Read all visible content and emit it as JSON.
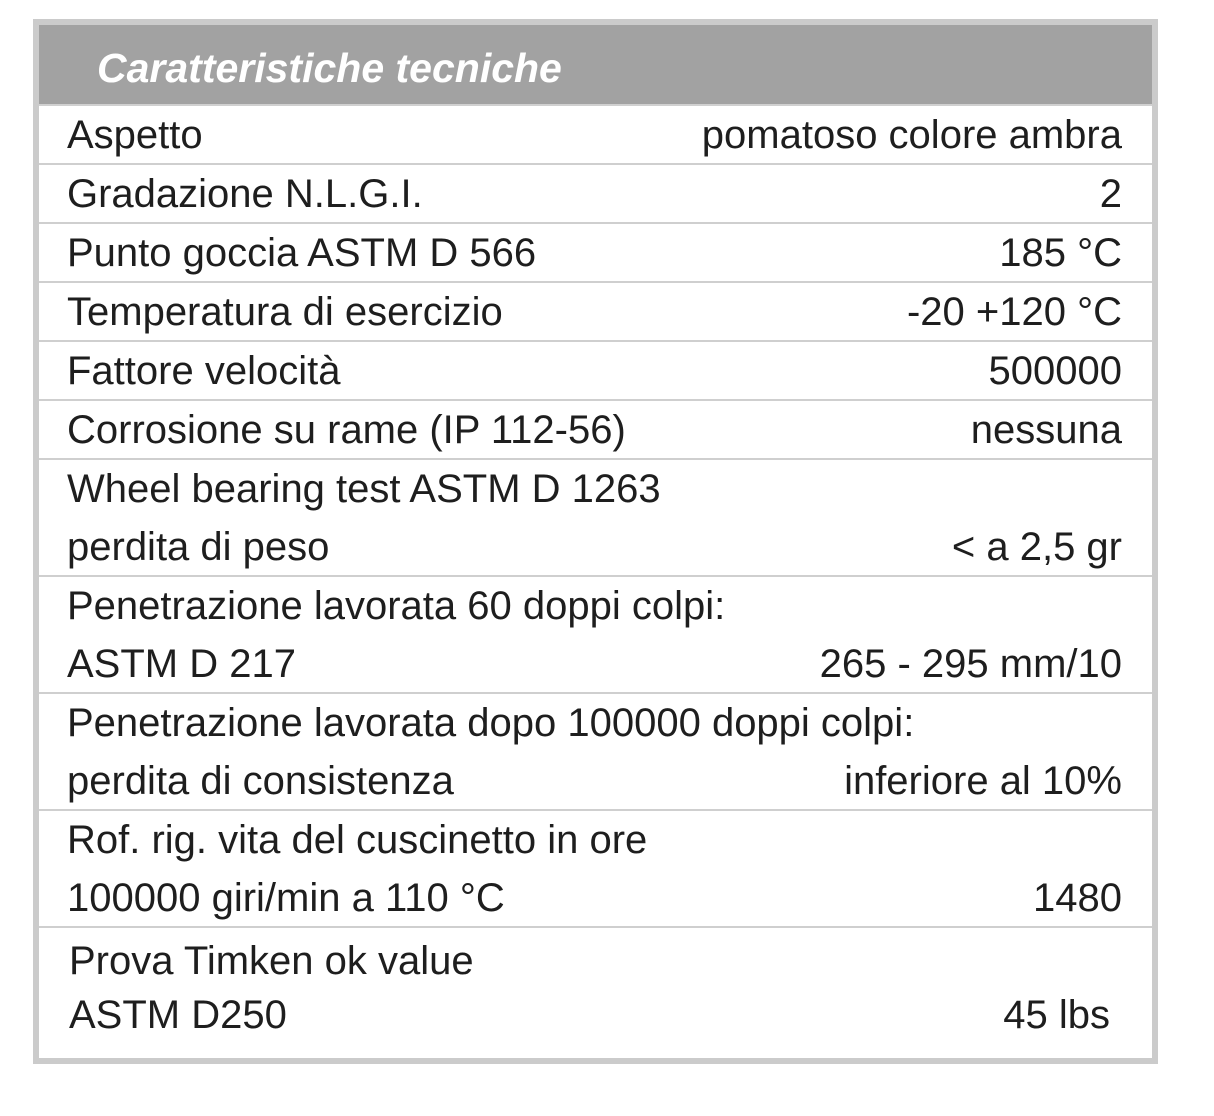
{
  "title": "Caratteristiche tecniche",
  "rows": [
    {
      "lines": [
        {
          "label": "Aspetto",
          "value": "pomatoso colore ambra"
        }
      ]
    },
    {
      "lines": [
        {
          "label": "Gradazione  N.L.G.I.",
          "value": "2"
        }
      ]
    },
    {
      "lines": [
        {
          "label": "Punto goccia ASTM  D 566",
          "value": "185 °C"
        }
      ]
    },
    {
      "lines": [
        {
          "label": "Temperatura di esercizio",
          "value": "-20  +120 °C"
        }
      ]
    },
    {
      "lines": [
        {
          "label": "Fattore velocità",
          "value": "500000"
        }
      ]
    },
    {
      "lines": [
        {
          "label": "Corrosione su rame (IP 112-56)",
          "value": "nessuna"
        }
      ]
    },
    {
      "lines": [
        {
          "label": "Wheel bearing test ASTM D 1263",
          "value": ""
        },
        {
          "label": "perdita di peso",
          "value": "< a 2,5 gr"
        }
      ]
    },
    {
      "lines": [
        {
          "label": "Penetrazione lavorata 60 doppi colpi:",
          "value": ""
        },
        {
          "label": "ASTM D 217",
          "value": "265 - 295 mm/10"
        }
      ]
    },
    {
      "lines": [
        {
          "label": "Penetrazione lavorata dopo 100000 doppi colpi:",
          "value": ""
        },
        {
          "label": "perdita di consistenza",
          "value": "inferiore al 10%"
        }
      ]
    },
    {
      "lines": [
        {
          "label": "Rof. rig. vita del cuscinetto in ore",
          "value": ""
        },
        {
          "label": "100000 giri/min a 110 °C",
          "value": "1480"
        }
      ]
    },
    {
      "lines": [
        {
          "label": "Prova Timken ok value",
          "value": ""
        },
        {
          "label": "ASTM D250",
          "value": "45 lbs"
        }
      ]
    }
  ],
  "colors": {
    "header_bg": "#a2a2a2",
    "border": "#cbcbcb"
  }
}
